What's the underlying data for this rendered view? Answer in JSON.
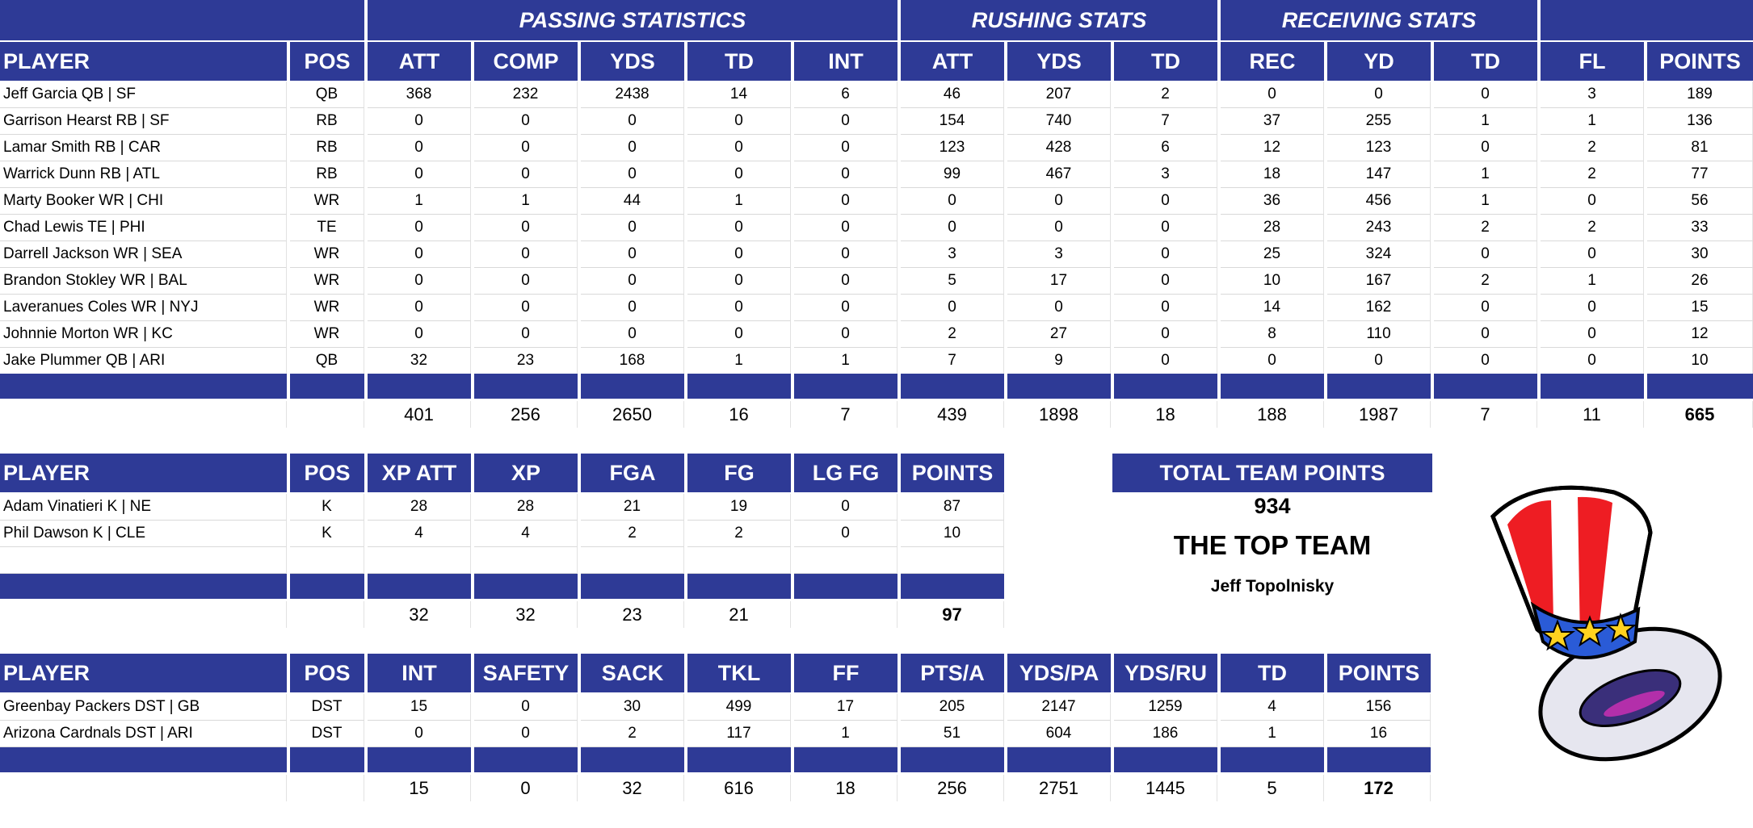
{
  "colors": {
    "header_bg": "#2e3a96",
    "header_text": "#ffffff",
    "grid_line": "#d9d9d9"
  },
  "main": {
    "groups": [
      "PASSING STATISTICS",
      "RUSHING STATS",
      "RECEIVING STATS"
    ],
    "headers": [
      "PLAYER",
      "POS",
      "ATT",
      "COMP",
      "YDS",
      "TD",
      "INT",
      "ATT",
      "YDS",
      "TD",
      "REC",
      "YD",
      "TD",
      "FL",
      "POINTS"
    ],
    "rows": [
      [
        "Jeff Garcia QB | SF",
        "QB",
        "368",
        "232",
        "2438",
        "14",
        "6",
        "46",
        "207",
        "2",
        "0",
        "0",
        "0",
        "3",
        "189"
      ],
      [
        "Garrison Hearst RB | SF",
        "RB",
        "0",
        "0",
        "0",
        "0",
        "0",
        "154",
        "740",
        "7",
        "37",
        "255",
        "1",
        "1",
        "136"
      ],
      [
        "Lamar Smith RB | CAR",
        "RB",
        "0",
        "0",
        "0",
        "0",
        "0",
        "123",
        "428",
        "6",
        "12",
        "123",
        "0",
        "2",
        "81"
      ],
      [
        "Warrick Dunn RB | ATL",
        "RB",
        "0",
        "0",
        "0",
        "0",
        "0",
        "99",
        "467",
        "3",
        "18",
        "147",
        "1",
        "2",
        "77"
      ],
      [
        "Marty Booker WR | CHI",
        "WR",
        "1",
        "1",
        "44",
        "1",
        "0",
        "0",
        "0",
        "0",
        "36",
        "456",
        "1",
        "0",
        "56"
      ],
      [
        "Chad Lewis TE | PHI",
        "TE",
        "0",
        "0",
        "0",
        "0",
        "0",
        "0",
        "0",
        "0",
        "28",
        "243",
        "2",
        "2",
        "33"
      ],
      [
        "Darrell Jackson WR | SEA",
        "WR",
        "0",
        "0",
        "0",
        "0",
        "0",
        "3",
        "3",
        "0",
        "25",
        "324",
        "0",
        "0",
        "30"
      ],
      [
        "Brandon Stokley WR | BAL",
        "WR",
        "0",
        "0",
        "0",
        "0",
        "0",
        "5",
        "17",
        "0",
        "10",
        "167",
        "2",
        "1",
        "26"
      ],
      [
        "Laveranues Coles WR | NYJ",
        "WR",
        "0",
        "0",
        "0",
        "0",
        "0",
        "0",
        "0",
        "0",
        "14",
        "162",
        "0",
        "0",
        "15"
      ],
      [
        "Johnnie Morton WR | KC",
        "WR",
        "0",
        "0",
        "0",
        "0",
        "0",
        "2",
        "27",
        "0",
        "8",
        "110",
        "0",
        "0",
        "12"
      ],
      [
        "Jake Plummer QB | ARI",
        "QB",
        "32",
        "23",
        "168",
        "1",
        "1",
        "7",
        "9",
        "0",
        "0",
        "0",
        "0",
        "0",
        "10"
      ]
    ],
    "totals": [
      "",
      "",
      "401",
      "256",
      "2650",
      "16",
      "7",
      "439",
      "1898",
      "18",
      "188",
      "1987",
      "7",
      "11",
      "665"
    ]
  },
  "kickers": {
    "headers": [
      "PLAYER",
      "POS",
      "XP ATT",
      "XP",
      "FGA",
      "FG",
      "LG FG",
      "POINTS"
    ],
    "rows": [
      [
        "Adam Vinatieri K | NE",
        "K",
        "28",
        "28",
        "21",
        "19",
        "0",
        "87"
      ],
      [
        "Phil Dawson K | CLE",
        "K",
        "4",
        "4",
        "2",
        "2",
        "0",
        "10"
      ],
      [
        "",
        "",
        "",
        "",
        "",
        "",
        "",
        ""
      ]
    ],
    "totals": [
      "",
      "",
      "32",
      "32",
      "23",
      "21",
      "",
      "97"
    ]
  },
  "defense": {
    "headers": [
      "PLAYER",
      "POS",
      "INT",
      "SAFETY",
      "SACK",
      "TKL",
      "FF",
      "PTS/A",
      "YDS/PA",
      "YDS/RU",
      "TD",
      "POINTS"
    ],
    "rows": [
      [
        "Greenbay Packers DST | GB",
        "DST",
        "15",
        "0",
        "30",
        "499",
        "17",
        "205",
        "2147",
        "1259",
        "4",
        "156"
      ],
      [
        "Arizona Cardnals DST | ARI",
        "DST",
        "0",
        "0",
        "2",
        "117",
        "1",
        "51",
        "604",
        "186",
        "1",
        "16"
      ]
    ],
    "totals": [
      "",
      "",
      "15",
      "0",
      "32",
      "616",
      "18",
      "256",
      "2751",
      "1445",
      "5",
      "172"
    ]
  },
  "team": {
    "total_label": "TOTAL TEAM POINTS",
    "total_points": "934",
    "team_name": "THE TOP TEAM",
    "owner": "Jeff Topolnisky"
  },
  "logo": {
    "icon": "uncle-sam-hat-icon"
  }
}
